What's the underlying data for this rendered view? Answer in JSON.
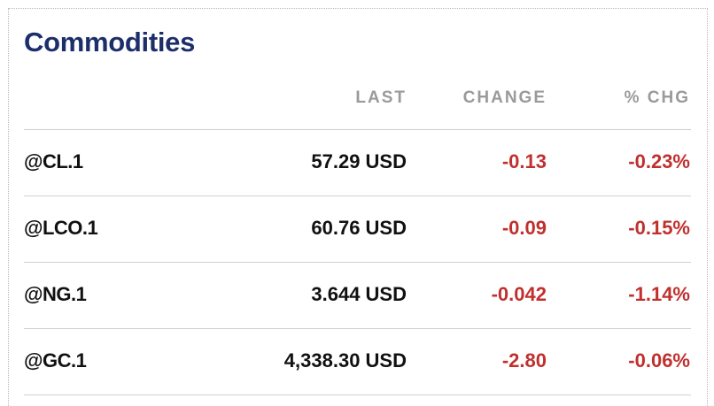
{
  "header": {
    "title": "Commodities"
  },
  "table": {
    "columns": [
      "LAST",
      "CHANGE",
      "% CHG"
    ],
    "rows": [
      [
        "@CL.1",
        "57.29 USD",
        "-0.13",
        "-0.23%"
      ],
      [
        "@LCO.1",
        "60.76 USD",
        "-0.09",
        "-0.15%"
      ],
      [
        "@NG.1",
        "3.644 USD",
        "-0.042",
        "-1.14%"
      ],
      [
        "@GC.1",
        "4,338.30 USD",
        "-2.80",
        "-0.06%"
      ]
    ]
  }
}
